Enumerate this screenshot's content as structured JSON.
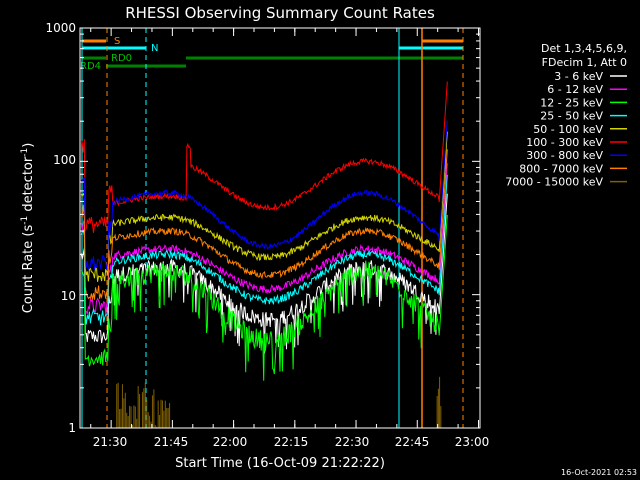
{
  "chart_data": {
    "type": "line",
    "title": "RHESSI Observing Summary Count Rates",
    "xlabel": "Start Time (16-Oct-09 21:22:22)",
    "ylabel_main": "Count Rate (s",
    "ylabel_sup1": "-1",
    "ylabel_mid": " detector",
    "ylabel_sup2": "-1",
    "ylabel_end": ")",
    "yscale": "log",
    "ylim": [
      1,
      1000
    ],
    "xlim_minutes": [
      0,
      98
    ],
    "x_ticks": [
      {
        "label": "21:30",
        "minutes": 7.63
      },
      {
        "label": "21:45",
        "minutes": 22.63
      },
      {
        "label": "22:00",
        "minutes": 37.63
      },
      {
        "label": "22:15",
        "minutes": 52.63
      },
      {
        "label": "22:30",
        "minutes": 67.63
      },
      {
        "label": "22:45",
        "minutes": 82.63
      },
      {
        "label": "23:00",
        "minutes": 97.63
      }
    ],
    "y_ticks": [
      {
        "label": "1",
        "value": 1
      },
      {
        "label": "10",
        "value": 10
      },
      {
        "label": "100",
        "value": 100
      },
      {
        "label": "1000",
        "value": 1000
      }
    ],
    "legend_header_1": "Det 1,3,4,5,6,9,",
    "legend_header_2": "FDecim 1, Att 0",
    "series": [
      {
        "name": "3 - 6 keV",
        "color": "#ffffff",
        "min": 6.5,
        "max": 16,
        "noise": 0.06
      },
      {
        "name": "6 - 12 keV",
        "color": "#ff00ff",
        "min": 11,
        "max": 22,
        "noise": 0.03
      },
      {
        "name": "12 - 25 keV",
        "color": "#00ff00",
        "min": 4.5,
        "max": 15,
        "noise": 0.08
      },
      {
        "name": "25 - 50 keV",
        "color": "#00ffff",
        "min": 9,
        "max": 20,
        "noise": 0.03
      },
      {
        "name": "50 - 100 keV",
        "color": "#d4d400",
        "min": 19,
        "max": 38,
        "noise": 0.025
      },
      {
        "name": "100 - 300 keV",
        "color": "#ff0000",
        "min": 45,
        "max": 100,
        "noise": 0.02
      },
      {
        "name": "300 - 800 keV",
        "color": "#0000ff",
        "min": 23,
        "max": 58,
        "noise": 0.02
      },
      {
        "name": "800 - 7000 keV",
        "color": "#ff8000",
        "min": 14,
        "max": 30,
        "noise": 0.025
      },
      {
        "name": "7000 - 15000 keV",
        "color": "#806000",
        "min": 1,
        "max": 1,
        "noise": 0
      }
    ],
    "flags": [
      {
        "label": "S",
        "color": "#ff8000"
      },
      {
        "label": "N",
        "color": "#00ffff"
      },
      {
        "label": "RD0",
        "color": "#008000"
      },
      {
        "label": "RD4",
        "color": "#008000"
      }
    ]
  },
  "timestamp": "16-Oct-2021 02:53"
}
